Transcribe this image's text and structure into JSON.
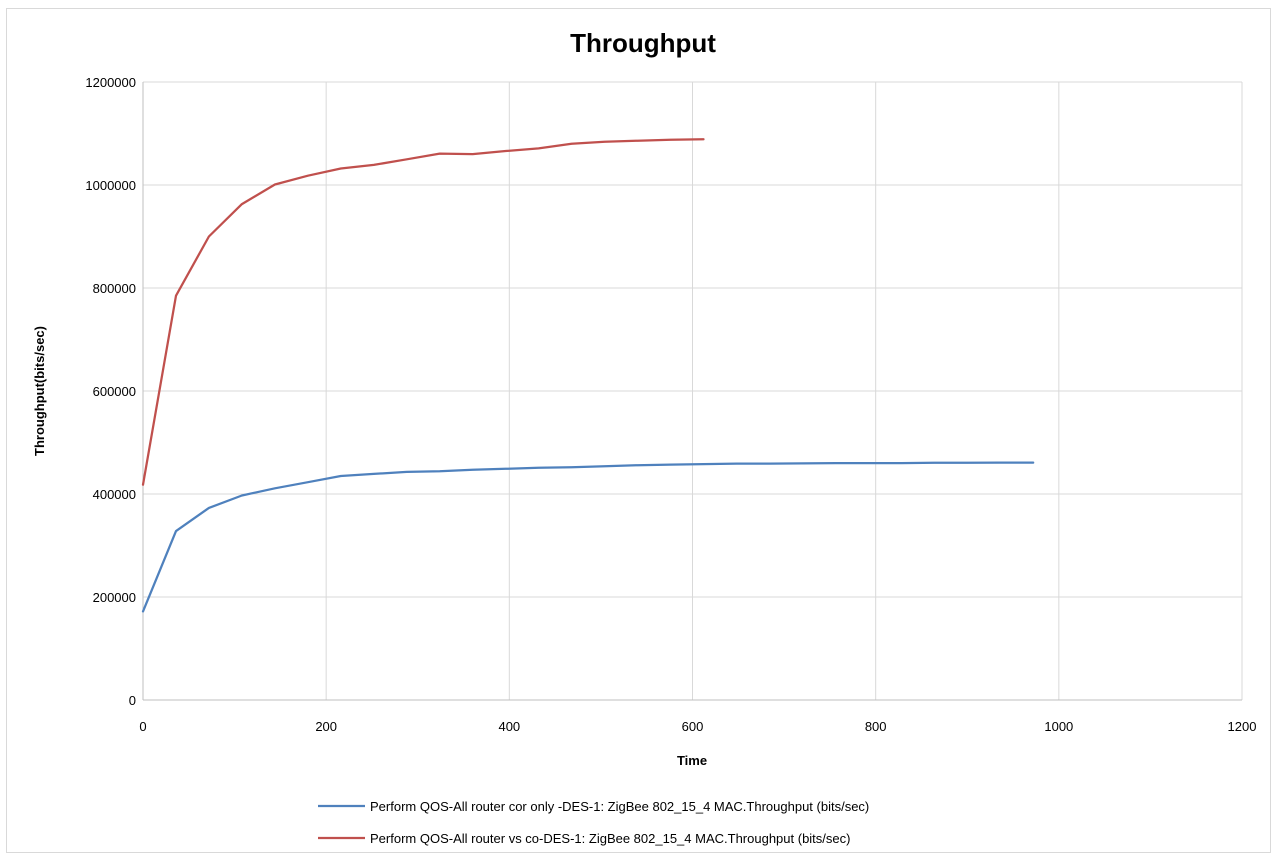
{
  "chart_data": {
    "type": "line",
    "title": "Throughput",
    "xlabel": "Time",
    "ylabel": "Throughput(bits/sec)",
    "xlim": [
      0,
      1200
    ],
    "ylim": [
      0,
      1200000
    ],
    "x_ticks": [
      0,
      200,
      400,
      600,
      800,
      1000,
      1200
    ],
    "y_ticks": [
      0,
      200000,
      400000,
      600000,
      800000,
      1000000,
      1200000
    ],
    "grid": "vertical and horizontal",
    "legend_position": "bottom",
    "series": [
      {
        "name": "Perform QOS-All router cor only -DES-1: ZigBee 802_15_4 MAC.Throughput (bits/sec)",
        "color": "#4f81bd",
        "x": [
          0,
          36,
          72,
          108,
          144,
          180,
          216,
          252,
          288,
          324,
          360,
          396,
          432,
          468,
          504,
          540,
          576,
          612,
          648,
          684,
          720,
          756,
          792,
          828,
          864,
          900,
          936,
          972
        ],
        "y": [
          172000,
          328000,
          373000,
          397000,
          411000,
          423000,
          435000,
          439000,
          443000,
          444000,
          447000,
          449000,
          451000,
          452000,
          454000,
          456000,
          457000,
          458000,
          459000,
          459000,
          459500,
          460000,
          460000,
          460000,
          460500,
          460500,
          461000,
          461000
        ]
      },
      {
        "name": "Perform QOS-All router vs co-DES-1: ZigBee 802_15_4 MAC.Throughput (bits/sec)",
        "color": "#c0504d",
        "x": [
          0,
          36,
          72,
          108,
          144,
          180,
          216,
          252,
          288,
          324,
          360,
          396,
          432,
          468,
          504,
          540,
          576,
          612
        ],
        "y": [
          418000,
          785000,
          900000,
          963000,
          1001000,
          1018000,
          1032000,
          1039000,
          1050000,
          1061000,
          1060000,
          1066000,
          1071000,
          1080000,
          1084000,
          1086000,
          1088000,
          1089000
        ]
      }
    ]
  }
}
